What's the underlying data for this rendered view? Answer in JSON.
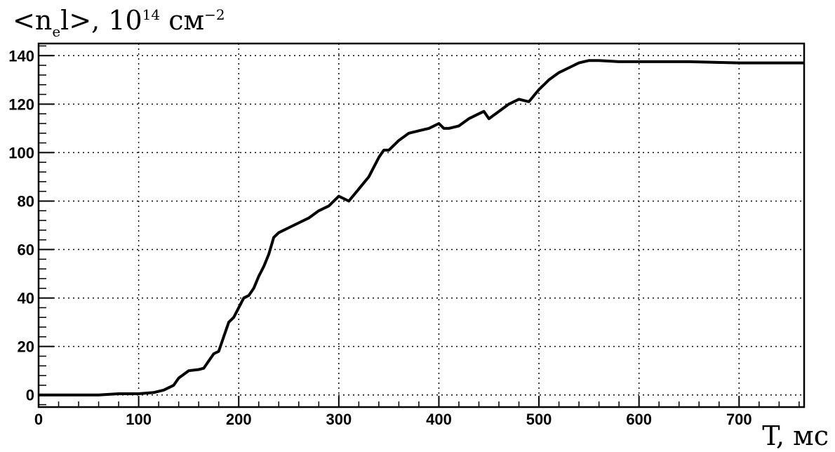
{
  "chart_data": {
    "type": "line",
    "ylabel_parts": {
      "open": "<n",
      "sub": "e",
      "close": "l>, 10",
      "sup1": "14",
      "unit": " см",
      "sup2": "−2"
    },
    "xlabel": "T, мс",
    "xlim": [
      0,
      765
    ],
    "ylim": [
      -5,
      145
    ],
    "xticks": [
      0,
      100,
      200,
      300,
      400,
      500,
      600,
      700
    ],
    "yticks": [
      0,
      20,
      40,
      60,
      80,
      100,
      120,
      140
    ],
    "grid": true,
    "series": [
      {
        "x": [
          0,
          20,
          40,
          60,
          80,
          100,
          115,
          125,
          135,
          140,
          150,
          160,
          165,
          170,
          175,
          180,
          185,
          190,
          195,
          200,
          205,
          210,
          215,
          220,
          225,
          230,
          235,
          240,
          245,
          250,
          260,
          270,
          280,
          290,
          300,
          305,
          310,
          320,
          330,
          340,
          345,
          350,
          360,
          370,
          380,
          390,
          400,
          405,
          410,
          420,
          430,
          440,
          445,
          450,
          460,
          470,
          480,
          490,
          500,
          510,
          520,
          530,
          540,
          550,
          560,
          580,
          600,
          650,
          700,
          750,
          765
        ],
        "y": [
          0,
          0,
          0,
          0,
          0.5,
          0.5,
          1,
          2,
          4,
          7,
          10,
          10.5,
          11,
          14,
          17,
          18,
          24,
          30,
          32,
          36,
          40,
          41,
          44,
          49,
          53,
          58,
          65,
          67,
          68,
          69,
          71,
          73,
          76,
          78,
          82,
          81,
          80,
          85,
          90,
          98,
          101,
          101,
          105,
          108,
          109,
          110,
          112,
          110,
          110,
          111,
          114,
          116,
          117,
          114,
          117,
          120,
          122,
          121,
          126,
          130,
          133,
          135,
          137,
          138,
          138,
          137.5,
          137.5,
          137.5,
          137,
          137,
          137
        ]
      }
    ]
  }
}
